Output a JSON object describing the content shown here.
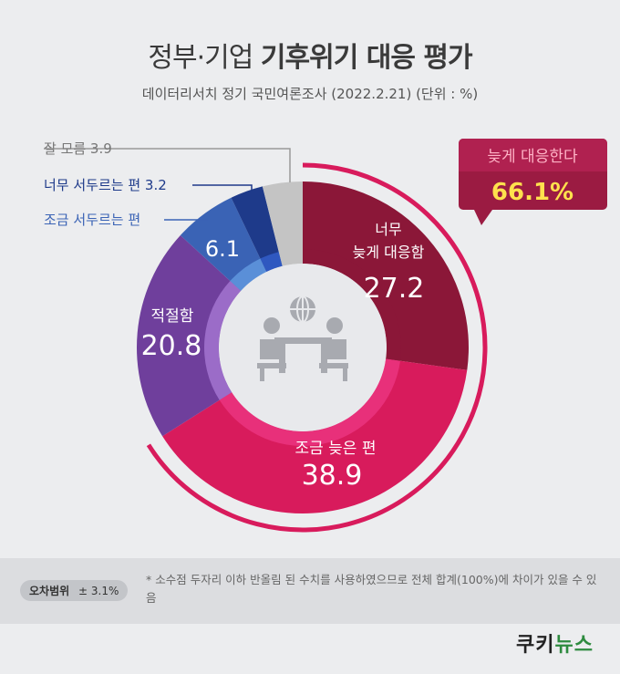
{
  "header": {
    "title_light": "정부·기업",
    "title_bold": "기후위기 대응 평가",
    "subtitle": "데이터리서치 정기 국민여론조사 (2022.2.21)   (단위 : %)"
  },
  "colors": {
    "too_late": "#8b1738",
    "a_bit_late": "#d81b5c",
    "adequate": "#6f3f9c",
    "a_bit_fast": "#3a63b5",
    "too_fast": "#1e3a8a",
    "dont_know": "#c4c4c4",
    "callout_bg": "#9b1b42",
    "callout_value": "#ffe14d",
    "callout_label": "#ffb3c6"
  },
  "chart_data": {
    "type": "pie",
    "style": "donut",
    "slices": [
      {
        "name": "너무 늦게 대응함",
        "value": 27.2
      },
      {
        "name": "조금 늦은 편",
        "value": 38.9
      },
      {
        "name": "적절함",
        "value": 20.8
      },
      {
        "name": "조금 서두르는 편",
        "value": 6.1
      },
      {
        "name": "너무 서두르는 편",
        "value": 3.2
      },
      {
        "name": "잘 모름",
        "value": 3.9
      }
    ],
    "callout": {
      "label": "늦게 대응한다",
      "value": "66.1%"
    }
  },
  "labels": {
    "too_late_line1": "너무",
    "too_late_line2": "늦게 대응함",
    "too_late_value": "27.2",
    "a_bit_late_name": "조금 늦은 편",
    "a_bit_late_value": "38.9",
    "adequate_name": "적절함",
    "adequate_value": "20.8",
    "a_bit_fast_value": "6.1",
    "a_bit_fast_ext": "조금 서두르는 편",
    "too_fast_ext": "너무 서두르는 편 3.2",
    "dont_know_ext": "잘 모름 3.9"
  },
  "footer": {
    "badge_label": "오차범위",
    "badge_value": "± 3.1%",
    "note": "* 소수점 두자리 이하 반올림 된 수치를 사용하였으므로 전체 합계(100%)에 차이가 있을 수 있음"
  },
  "logo": {
    "part1": "쿠키",
    "part2": "뉴스"
  }
}
